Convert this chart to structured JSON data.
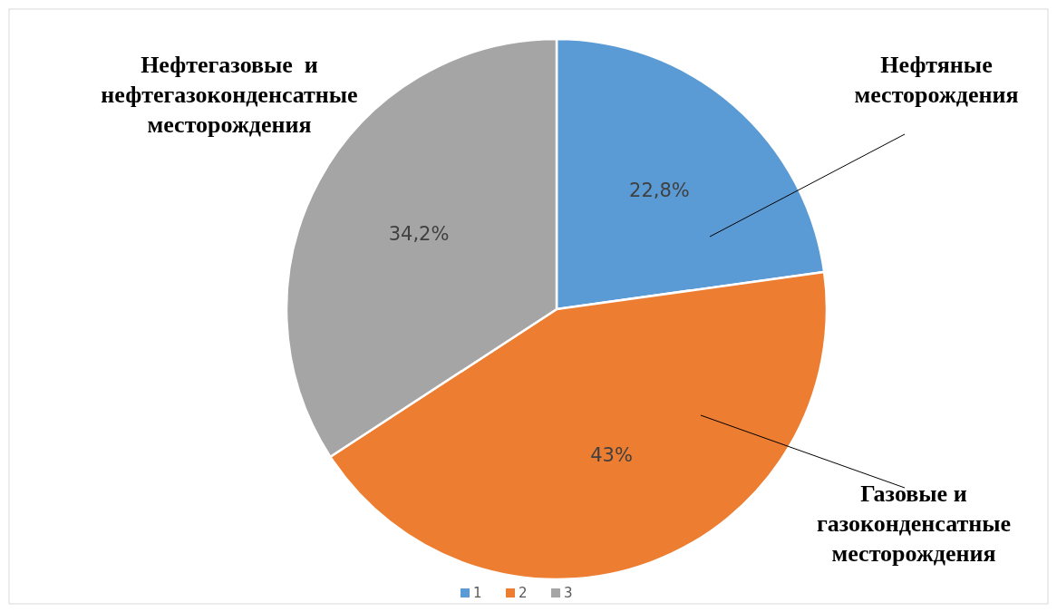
{
  "chart_data": {
    "type": "pie",
    "categories": [
      "1",
      "2",
      "3"
    ],
    "values": [
      22.8,
      43,
      34.2
    ],
    "colors": [
      "#5b9bd5",
      "#ed7d31",
      "#a5a5a5"
    ],
    "value_labels": [
      "22,8%",
      "43%",
      "34,2%"
    ],
    "annotations": [
      "Нефтяные\nместорождения",
      "Газовые и\nгазоконденсатные\nместорождения",
      "Нефтегазовые  и\nнефтегазоконденсатные\nместорождения"
    ],
    "legend": "bottom"
  }
}
